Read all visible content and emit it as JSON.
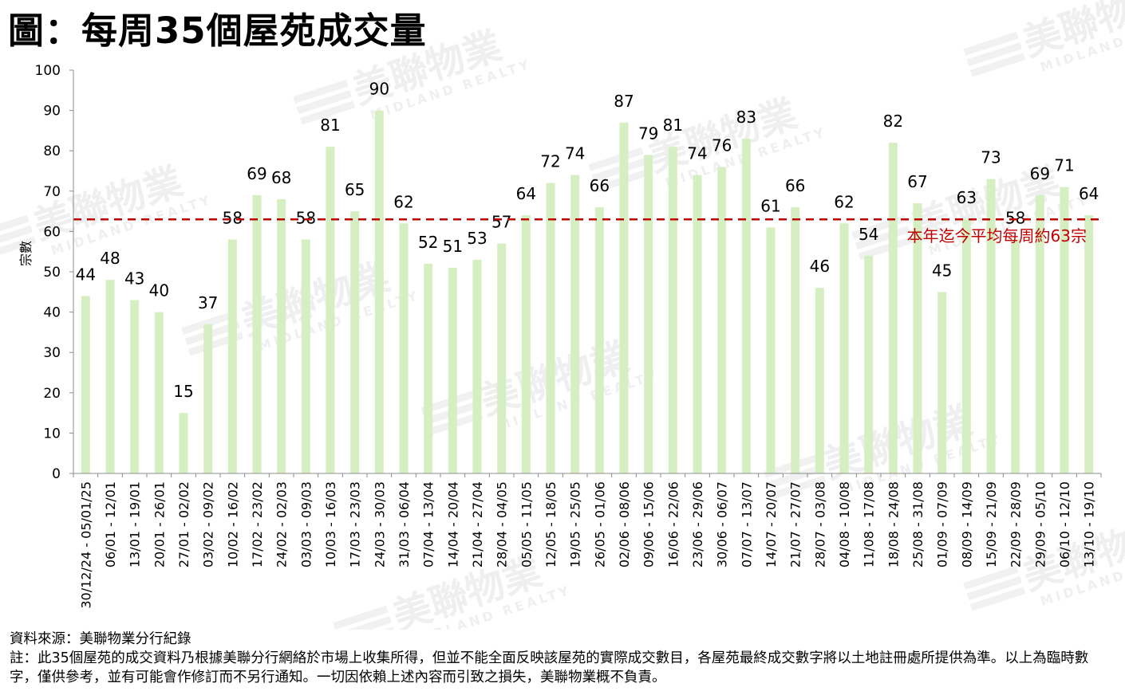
{
  "title": "圖：每周35個屋苑成交量",
  "watermark": {
    "brand": "美聯物業",
    "sub": "MIDLAND REALTY"
  },
  "footer": {
    "source": "資料來源：美聯物業分行紀錄",
    "note": "註：此35個屋苑的成交資料乃根據美聯分行網絡於市場上收集所得，但並不能全面反映該屋苑的實際成交數目，各屋苑最終成交數字將以土地註冊處所提供為準。以上為臨時數字，僅供參考，並有可能會作修訂而不另行通知。一切因依賴上述內容而引致之損失，美聯物業概不負責。"
  },
  "chart_data": {
    "type": "bar",
    "ylabel": "宗數",
    "ylim": [
      0,
      100
    ],
    "yticks": [
      0,
      10,
      20,
      30,
      40,
      50,
      60,
      70,
      80,
      90,
      100
    ],
    "grid": false,
    "categories": [
      "30/12/24 - 05/01/25",
      "06/01 - 12/01",
      "13/01 - 19/01",
      "20/01 - 26/01",
      "27/01 - 02/02",
      "03/02 - 09/02",
      "10/02 - 16/02",
      "17/02 - 23/02",
      "24/02 - 02/03",
      "03/03 - 09/03",
      "10/03 - 16/03",
      "17/03 - 23/03",
      "24/03 - 30/03",
      "31/03 - 06/04",
      "07/04 - 13/04",
      "14/04 - 20/04",
      "21/04 - 27/04",
      "28/04 - 04/05",
      "05/05 - 11/05",
      "12/05 - 18/05",
      "19/05 - 25/05",
      "26/05 - 01/06",
      "02/06 - 08/06",
      "09/06 - 15/06",
      "16/06 - 22/06",
      "23/06 - 29/06",
      "30/06 - 06/07",
      "07/07 - 13/07",
      "14/07 - 20/07",
      "21/07 - 27/07",
      "28/07 - 03/08",
      "04/08 - 10/08",
      "11/08 - 17/08",
      "18/08 - 24/08",
      "25/08 - 31/08",
      "01/09 - 07/09",
      "08/09 - 14/09",
      "15/09 - 21/09",
      "22/09 - 28/09",
      "29/09 - 05/10",
      "06/10 - 12/10",
      "13/10 - 19/10"
    ],
    "values": [
      44,
      48,
      43,
      40,
      15,
      37,
      58,
      69,
      68,
      58,
      81,
      65,
      90,
      62,
      52,
      51,
      53,
      57,
      64,
      72,
      74,
      66,
      87,
      79,
      81,
      74,
      76,
      83,
      61,
      66,
      46,
      62,
      54,
      82,
      67,
      45,
      63,
      73,
      58,
      69,
      71,
      64
    ],
    "average": {
      "value": 63,
      "label": "本年迄今平均每周約63宗"
    },
    "colors": {
      "bar": "#d6efc2",
      "average_line": "#c00000",
      "average_text": "#c00000",
      "axis": "#8c8c8c"
    }
  }
}
